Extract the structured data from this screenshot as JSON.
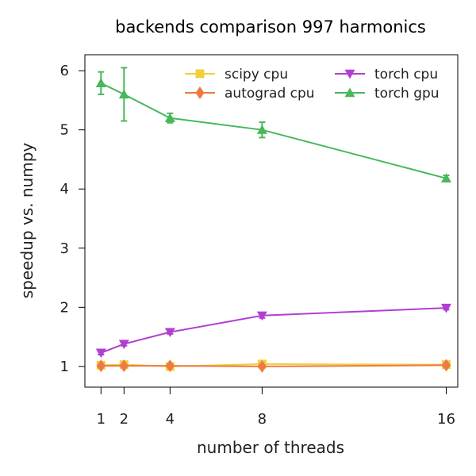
{
  "chart_data": {
    "type": "line",
    "title": "backends comparison 997 harmonics",
    "xlabel": "number of threads",
    "ylabel": "speedup vs. numpy",
    "x": [
      1,
      2,
      4,
      8,
      16
    ],
    "xticks": [
      "1",
      "2",
      "4",
      "8",
      "16"
    ],
    "yticks": [
      "1",
      "2",
      "3",
      "4",
      "5",
      "6"
    ],
    "xlim": [
      0.3,
      16.5
    ],
    "ylim": [
      0.65,
      6.27
    ],
    "grid": false,
    "legend_position": "top-right",
    "series": [
      {
        "name": "scipy cpu",
        "color": "#f2cf3c",
        "marker": "square",
        "values": [
          1.02,
          1.03,
          1.0,
          1.04,
          1.03
        ],
        "error": [
          0.02,
          0.02,
          0.02,
          0.02,
          0.02
        ]
      },
      {
        "name": "autograd cpu",
        "color": "#ec7b43",
        "marker": "diamond",
        "values": [
          1.01,
          1.01,
          1.01,
          1.0,
          1.02
        ],
        "error": [
          0.02,
          0.02,
          0.02,
          0.02,
          0.02
        ]
      },
      {
        "name": "torch cpu",
        "color": "#b23fd1",
        "marker": "triangle-down",
        "values": [
          1.23,
          1.38,
          1.58,
          1.86,
          1.99
        ],
        "error": [
          0.03,
          0.03,
          0.03,
          0.04,
          0.03
        ]
      },
      {
        "name": "torch gpu",
        "color": "#48b85c",
        "marker": "triangle-up",
        "values": [
          5.79,
          5.6,
          5.2,
          5.0,
          4.18
        ],
        "error": [
          0.19,
          0.45,
          0.08,
          0.13,
          0.05
        ]
      }
    ]
  }
}
